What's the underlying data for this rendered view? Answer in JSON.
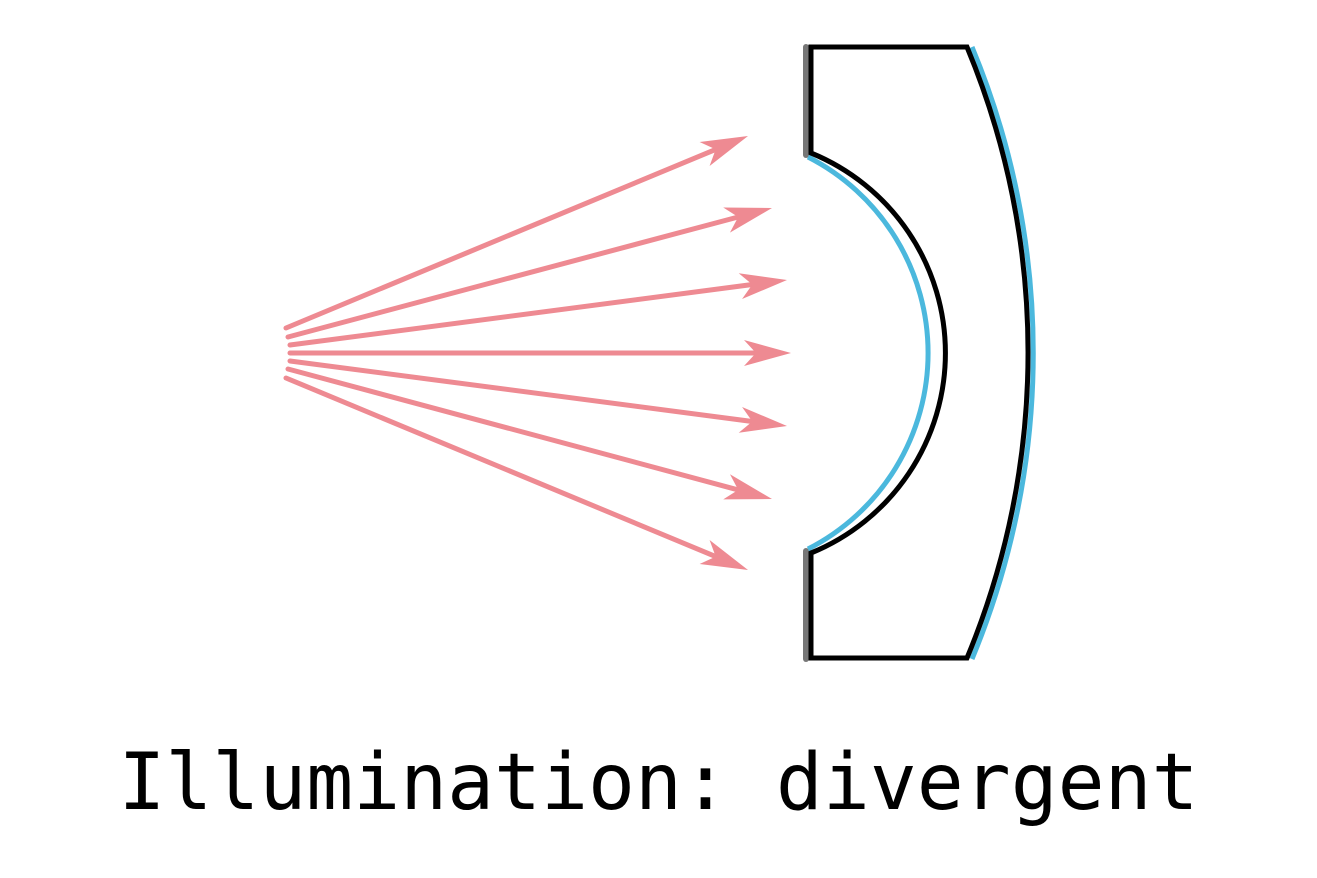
{
  "caption": "Illumination: divergent",
  "colors": {
    "ray": "#ee8a92",
    "lens_outline": "#000000",
    "coating": "#4bb8dd",
    "edge": "#777777"
  },
  "rays": {
    "count": 7,
    "type": "divergent"
  }
}
